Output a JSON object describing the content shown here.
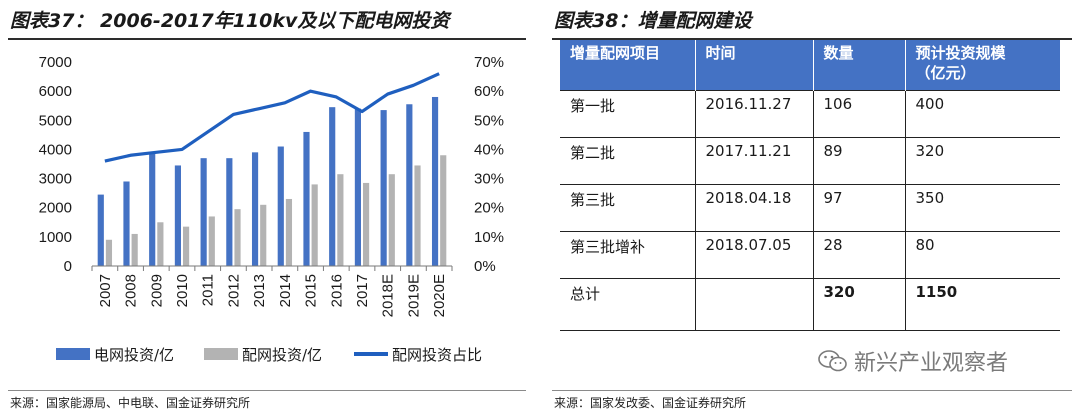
{
  "left_title": "图表37： 2006-2017年110kv及以下配电网投资",
  "right_title": "图表38：增量配网建设",
  "left_source": "来源：国家能源局、中电联、国金证券研究所",
  "right_source": "来源：国家发改委、国金证券研究所",
  "watermark": "新兴产业观察者",
  "colors": {
    "blue": "#4472c4",
    "gray": "#b3b3b3",
    "line": "#1f5fbf",
    "header": "#4472c4"
  },
  "chart_data": {
    "type": "bar",
    "categories": [
      "2007",
      "2008",
      "2009",
      "2010",
      "2011",
      "2012",
      "2013",
      "2014",
      "2015",
      "2016",
      "2017",
      "2018E",
      "2019E",
      "2020E"
    ],
    "series": [
      {
        "name": "电网投资/亿",
        "type": "bar",
        "axis": "left",
        "values": [
          2450,
          2900,
          3850,
          3450,
          3700,
          3700,
          3900,
          4100,
          4600,
          5450,
          5400,
          5350,
          5550,
          5800
        ]
      },
      {
        "name": "配网投资/亿",
        "type": "bar",
        "axis": "left",
        "values": [
          900,
          1100,
          1500,
          1350,
          1700,
          1950,
          2100,
          2300,
          2800,
          3150,
          2850,
          3150,
          3450,
          3800
        ]
      },
      {
        "name": "配网投资占比",
        "type": "line",
        "axis": "right",
        "values": [
          0.36,
          0.38,
          0.39,
          0.4,
          0.46,
          0.52,
          0.54,
          0.56,
          0.6,
          0.58,
          0.53,
          0.59,
          0.62,
          0.66
        ]
      }
    ],
    "y_left": {
      "min": 0,
      "max": 7000,
      "ticks": [
        "0",
        "1000",
        "2000",
        "3000",
        "4000",
        "5000",
        "6000",
        "7000"
      ]
    },
    "y_right": {
      "min": 0,
      "max": 0.7,
      "ticks": [
        "0%",
        "10%",
        "20%",
        "30%",
        "40%",
        "50%",
        "60%",
        "70%"
      ]
    },
    "legend_position": "bottom"
  },
  "table": {
    "headers": [
      "增量配网项目",
      "时间",
      "数量",
      "预计投资规模\n（亿元）"
    ],
    "rows": [
      [
        "第一批",
        "2016.11.27",
        "106",
        "400"
      ],
      [
        "第二批",
        "2017.11.21",
        "89",
        "320"
      ],
      [
        "第三批",
        "2018.04.18",
        "97",
        "350"
      ],
      [
        "第三批增补",
        "2018.07.05",
        "28",
        "80"
      ],
      [
        "总计",
        "",
        "320",
        "1150"
      ]
    ]
  }
}
